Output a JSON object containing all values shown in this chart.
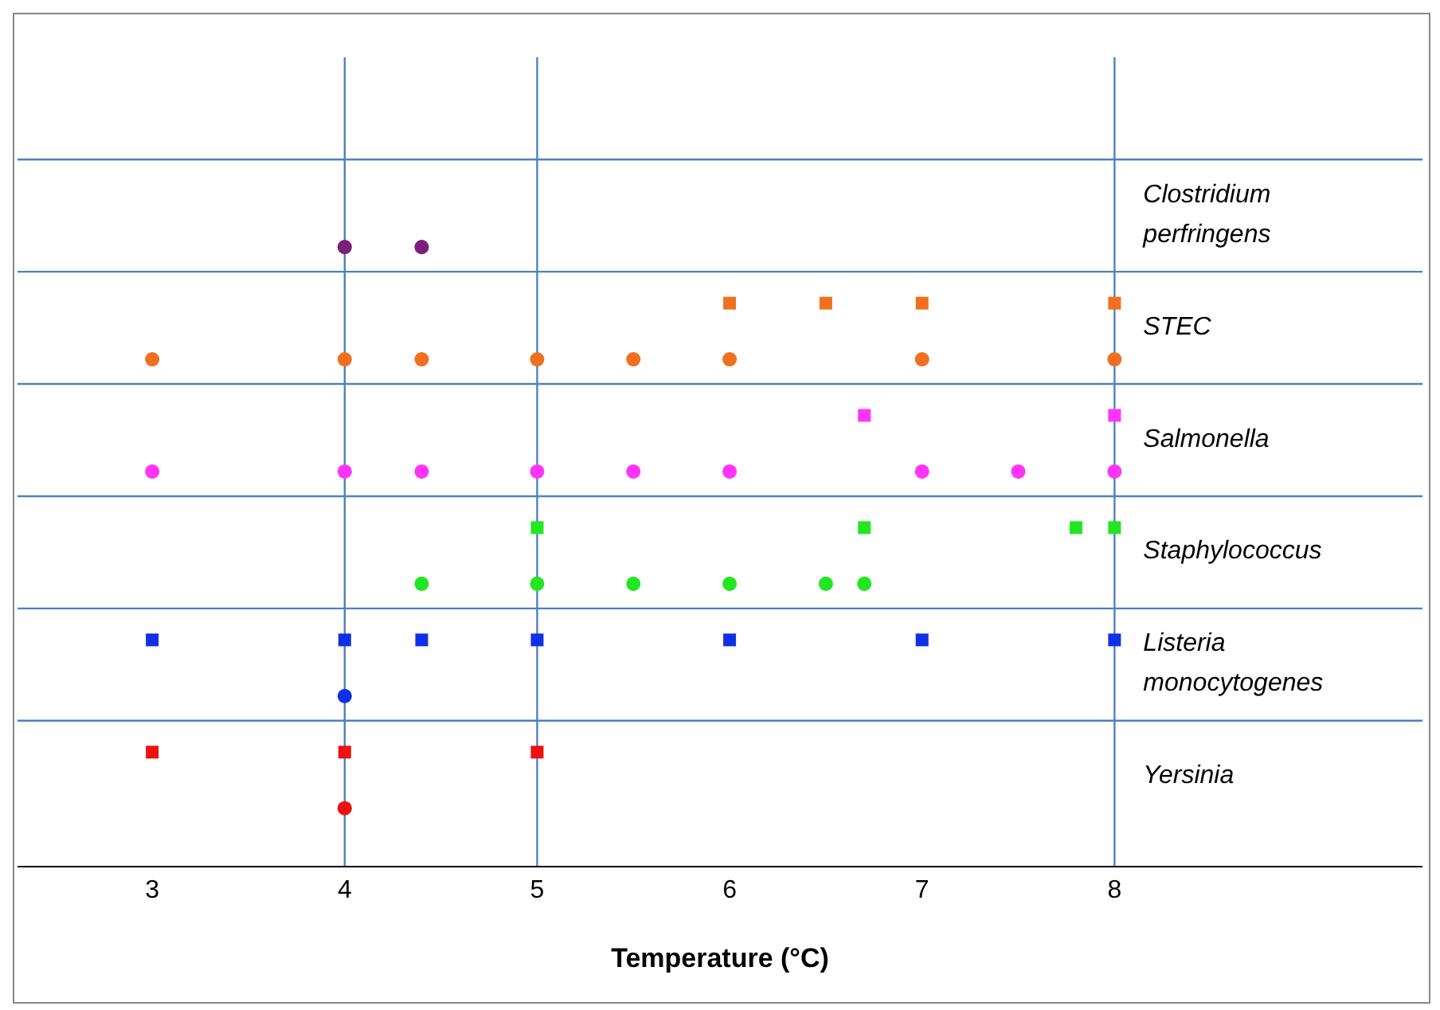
{
  "chart_data": {
    "type": "scatter",
    "orientation": "horizontal",
    "xlabel": "Temperature (°C)",
    "xlim": [
      2.3,
      9.6
    ],
    "xticks": [
      3,
      4,
      5,
      6,
      7,
      8
    ],
    "categories": [
      "Clostridium perfringens",
      "STEC",
      "Salmonella",
      "Staphylococcus",
      "Listeria monocytogenes",
      "Yersinia"
    ],
    "grid": "y",
    "ref_lines": [
      {
        "axis": "x",
        "value": 4,
        "color": "#4f81bd"
      },
      {
        "axis": "x",
        "value": 5,
        "color": "#4f81bd"
      },
      {
        "axis": "x",
        "value": 8,
        "color": "#4f81bd"
      }
    ],
    "series": [
      {
        "color": "#7a1f7a",
        "marker": "circle",
        "x": [
          "Clostridium perfringens",
          "Clostridium perfringens"
        ],
        "values": [
          4,
          4.4
        ]
      },
      {
        "color": "#f07020",
        "marker": "square",
        "x": [
          "STEC",
          "STEC",
          "STEC",
          "STEC"
        ],
        "values": [
          6,
          6.5,
          7,
          8
        ]
      },
      {
        "color": "#f07020",
        "marker": "circle",
        "x": [
          "STEC",
          "STEC",
          "STEC",
          "STEC",
          "STEC",
          "STEC",
          "STEC",
          "STEC"
        ],
        "values": [
          3,
          4,
          4.4,
          5,
          5.5,
          6,
          7,
          8
        ]
      },
      {
        "color": "#ff33ff",
        "marker": "square",
        "x": [
          "Salmonella",
          "Salmonella"
        ],
        "values": [
          6.7,
          8
        ]
      },
      {
        "color": "#ff33ff",
        "marker": "circle",
        "x": [
          "Salmonella",
          "Salmonella",
          "Salmonella",
          "Salmonella",
          "Salmonella",
          "Salmonella",
          "Salmonella",
          "Salmonella",
          "Salmonella"
        ],
        "values": [
          3,
          4,
          4.4,
          5,
          5.5,
          6,
          7,
          7.5,
          8
        ]
      },
      {
        "color": "#22e622",
        "marker": "square",
        "x": [
          "Staphylococcus",
          "Staphylococcus",
          "Staphylococcus",
          "Staphylococcus"
        ],
        "values": [
          5,
          6.7,
          7.8,
          8
        ]
      },
      {
        "color": "#22e622",
        "marker": "circle",
        "x": [
          "Staphylococcus",
          "Staphylococcus",
          "Staphylococcus",
          "Staphylococcus",
          "Staphylococcus",
          "Staphylococcus"
        ],
        "values": [
          4.4,
          5,
          5.5,
          6,
          6.5,
          6.7
        ]
      },
      {
        "color": "#1030e8",
        "marker": "square",
        "x": [
          "Listeria monocytogenes",
          "Listeria monocytogenes",
          "Listeria monocytogenes",
          "Listeria monocytogenes",
          "Listeria monocytogenes",
          "Listeria monocytogenes",
          "Listeria monocytogenes"
        ],
        "values": [
          3,
          4,
          4.4,
          5,
          6,
          7,
          8
        ]
      },
      {
        "color": "#1030e8",
        "marker": "circle",
        "x": [
          "Listeria monocytogenes"
        ],
        "values": [
          4
        ]
      },
      {
        "color": "#ee1111",
        "marker": "square",
        "x": [
          "Yersinia",
          "Yersinia",
          "Yersinia"
        ],
        "values": [
          3,
          4,
          5
        ]
      },
      {
        "color": "#ee1111",
        "marker": "circle",
        "x": [
          "Yersinia"
        ],
        "values": [
          4
        ]
      }
    ]
  }
}
